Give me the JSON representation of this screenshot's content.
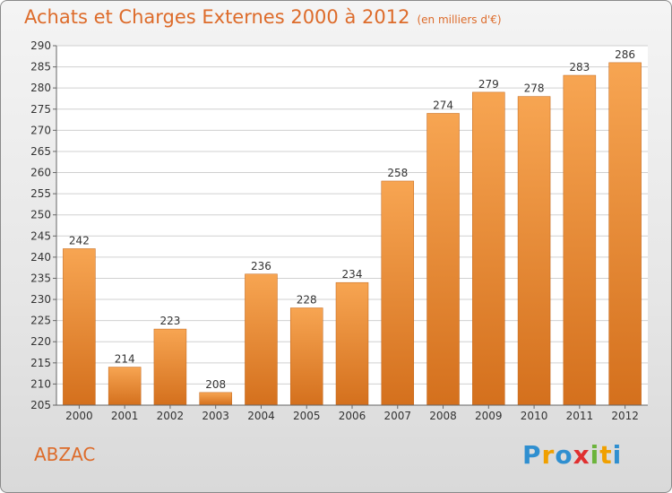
{
  "header": {
    "title": "Achats et Charges Externes 2000 à 2012",
    "unit": "(en milliers d'€)"
  },
  "footer": {
    "town": "ABZAC",
    "logo_text": "Proxiti",
    "logo_letters": [
      {
        "char": "P",
        "color": "#2f8fd0"
      },
      {
        "char": "r",
        "color": "#f0a000"
      },
      {
        "char": "o",
        "color": "#2f8fd0"
      },
      {
        "char": "x",
        "color": "#e03030"
      },
      {
        "char": "i",
        "color": "#6cb43c"
      },
      {
        "char": "t",
        "color": "#f0a000"
      },
      {
        "char": "i",
        "color": "#2f8fd0"
      }
    ]
  },
  "colors": {
    "accent": "#dd6b2a",
    "bar_light": "#f7a552",
    "bar_dark": "#d4701d",
    "grid": "#d0d0d0"
  },
  "chart_data": {
    "type": "bar",
    "categories": [
      "2000",
      "2001",
      "2002",
      "2003",
      "2004",
      "2005",
      "2006",
      "2007",
      "2008",
      "2009",
      "2010",
      "2011",
      "2012"
    ],
    "values": [
      242,
      214,
      223,
      208,
      236,
      228,
      234,
      258,
      274,
      279,
      278,
      283,
      286
    ],
    "ylim": [
      205,
      290
    ],
    "yticks": [
      205,
      210,
      215,
      220,
      225,
      230,
      235,
      240,
      245,
      250,
      255,
      260,
      265,
      270,
      275,
      280,
      285,
      290
    ],
    "grid": true,
    "data_labels": true
  }
}
